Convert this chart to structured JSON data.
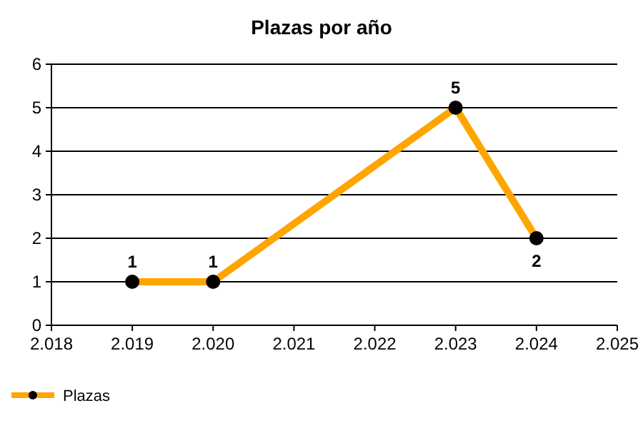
{
  "chart_data": {
    "type": "line",
    "title": "Plazas por año",
    "x": [
      2019,
      2020,
      2023,
      2024
    ],
    "series": [
      {
        "name": "Plazas",
        "color": "#ffa500",
        "values": [
          1,
          1,
          5,
          2
        ]
      }
    ],
    "xlim": [
      2018,
      2025
    ],
    "xticks": [
      {
        "value": 2018,
        "label": "2.018"
      },
      {
        "value": 2019,
        "label": "2.019"
      },
      {
        "value": 2020,
        "label": "2.020"
      },
      {
        "value": 2021,
        "label": "2.021"
      },
      {
        "value": 2022,
        "label": "2.022"
      },
      {
        "value": 2023,
        "label": "2.023"
      },
      {
        "value": 2024,
        "label": "2.024"
      },
      {
        "value": 2025,
        "label": "2.025"
      }
    ],
    "ylim": [
      0,
      6
    ],
    "yticks": [
      0,
      1,
      2,
      3,
      4,
      5,
      6
    ],
    "grid": "y",
    "legend": "bottom left",
    "marker": "circle",
    "data_labels": true
  }
}
